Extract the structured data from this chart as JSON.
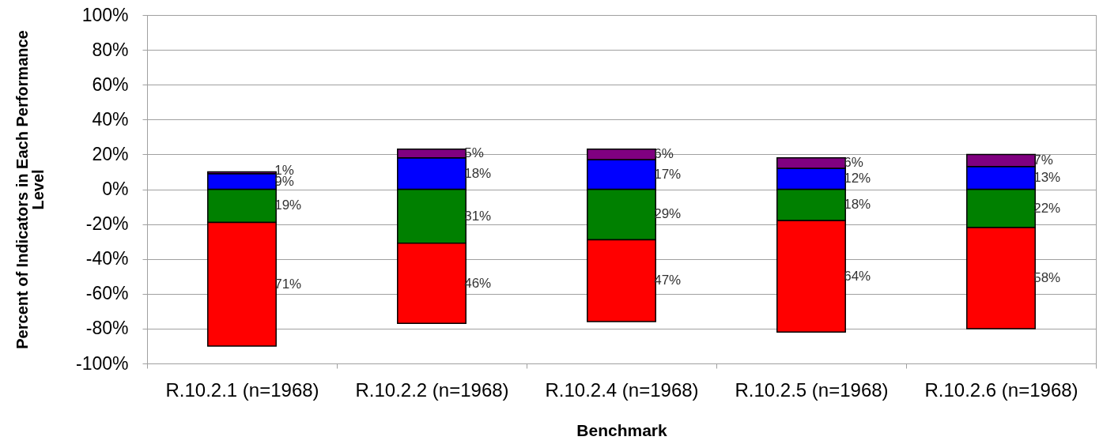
{
  "chart_data": {
    "type": "bar",
    "xlabel": "Benchmark",
    "ylabel": "Percent of Indicators in Each Performance Level",
    "categories": [
      "R.10.2.1 (n=1968)",
      "R.10.2.2 (n=1968)",
      "R.10.2.4 (n=1968)",
      "R.10.2.5 (n=1968)",
      "R.10.2.6 (n=1968)"
    ],
    "series": [
      {
        "color": "#008000",
        "values": [
          19,
          31,
          29,
          18,
          22
        ],
        "base": [
          -19,
          -31,
          -29,
          -18,
          -22
        ],
        "value_labels": [
          "19%",
          "31%",
          "29%",
          "18%",
          "22%"
        ]
      },
      {
        "color": "#ff0000",
        "values": [
          71,
          46,
          47,
          64,
          58
        ],
        "base": [
          -90,
          -77,
          -76,
          -82,
          -80
        ],
        "value_labels": [
          "71%",
          "46%",
          "47%",
          "64%",
          "58%"
        ]
      },
      {
        "color": "#0000ff",
        "values": [
          9,
          18,
          17,
          12,
          13
        ],
        "base": [
          0,
          0,
          0,
          0,
          0
        ],
        "value_labels": [
          "9%",
          "18%",
          "17%",
          "12%",
          "13%"
        ]
      },
      {
        "color": "#800080",
        "values": [
          1,
          5,
          6,
          6,
          7
        ],
        "base": [
          9,
          18,
          17,
          12,
          13
        ],
        "value_labels": [
          "1%",
          "5%",
          "6%",
          "6%",
          "7%"
        ]
      }
    ],
    "ylim": [
      -100,
      100
    ],
    "yticks": [
      {
        "value": -100,
        "label": "-100%"
      },
      {
        "value": -80,
        "label": "-80%"
      },
      {
        "value": -60,
        "label": "-60%"
      },
      {
        "value": -40,
        "label": "-40%"
      },
      {
        "value": -20,
        "label": "-20%"
      },
      {
        "value": 0,
        "label": "0%"
      },
      {
        "value": 20,
        "label": "20%"
      },
      {
        "value": 40,
        "label": "40%"
      },
      {
        "value": 60,
        "label": "60%"
      },
      {
        "value": 80,
        "label": "80%"
      },
      {
        "value": 100,
        "label": "100%"
      }
    ],
    "grid": "y"
  }
}
